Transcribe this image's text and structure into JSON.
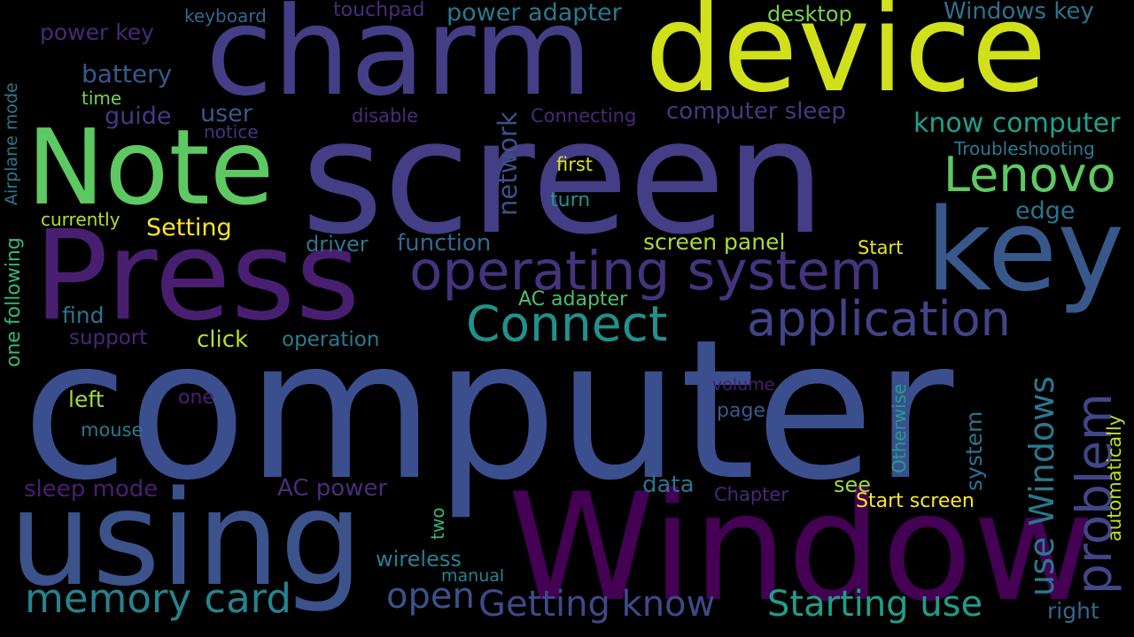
{
  "words": [
    {
      "text": "computer",
      "color": "#3b4f8e"
    },
    {
      "text": "screen",
      "color": "#433e85"
    },
    {
      "text": "Press",
      "color": "#481f70"
    },
    {
      "text": "charm",
      "color": "#433e85"
    },
    {
      "text": "device",
      "color": "#d0e11c"
    },
    {
      "text": "Note",
      "color": "#5ec962"
    },
    {
      "text": "key",
      "color": "#38588c"
    },
    {
      "text": "using",
      "color": "#3b528b"
    },
    {
      "text": "Window",
      "color": "#440154"
    },
    {
      "text": "operating system",
      "color": "#46337e"
    },
    {
      "text": "application",
      "color": "#414487"
    },
    {
      "text": "Connect",
      "color": "#21918c"
    },
    {
      "text": "problem",
      "color": "#404688"
    },
    {
      "text": "Lenovo",
      "color": "#5ec962"
    },
    {
      "text": "memory card",
      "color": "#25838e"
    },
    {
      "text": "Getting know",
      "color": "#3e4989"
    },
    {
      "text": "Starting use",
      "color": "#1f9e89"
    },
    {
      "text": "use Windows",
      "color": "#2a788e"
    },
    {
      "text": "open",
      "color": "#3b528b"
    },
    {
      "text": "know computer",
      "color": "#1fa088"
    },
    {
      "text": "network",
      "color": "#3b528b"
    },
    {
      "text": "keyboard",
      "color": "#31688e"
    },
    {
      "text": "touchpad",
      "color": "#472d7b"
    },
    {
      "text": "power adapter",
      "color": "#2a788e"
    },
    {
      "text": "desktop",
      "color": "#7ad151"
    },
    {
      "text": "Windows key",
      "color": "#2c728e"
    },
    {
      "text": "power key",
      "color": "#482878"
    },
    {
      "text": "battery",
      "color": "#38588c"
    },
    {
      "text": "time",
      "color": "#7ad151"
    },
    {
      "text": "guide",
      "color": "#453882"
    },
    {
      "text": "user",
      "color": "#38588c"
    },
    {
      "text": "notice",
      "color": "#46337e"
    },
    {
      "text": "disable",
      "color": "#472d7b"
    },
    {
      "text": "Connecting",
      "color": "#482878"
    },
    {
      "text": "computer sleep",
      "color": "#453882"
    },
    {
      "text": "Troubleshooting",
      "color": "#2a788e"
    },
    {
      "text": "first",
      "color": "#d8e219"
    },
    {
      "text": "turn",
      "color": "#21918c"
    },
    {
      "text": "edge",
      "color": "#2c728e"
    },
    {
      "text": "currently",
      "color": "#b5de2b"
    },
    {
      "text": "Setting",
      "color": "#fde725"
    },
    {
      "text": "driver",
      "color": "#2a788e"
    },
    {
      "text": "function",
      "color": "#31688e"
    },
    {
      "text": "screen panel",
      "color": "#aadc32"
    },
    {
      "text": "Start",
      "color": "#e5e419"
    },
    {
      "text": "AC adapter",
      "color": "#4ac16d"
    },
    {
      "text": "find",
      "color": "#2c728e"
    },
    {
      "text": "support",
      "color": "#482878"
    },
    {
      "text": "click",
      "color": "#b5de2b"
    },
    {
      "text": "operation",
      "color": "#287c8e"
    },
    {
      "text": "Airplane mode",
      "color": "#2a788e"
    },
    {
      "text": "one following",
      "color": "#35b779"
    },
    {
      "text": "left",
      "color": "#a0da39"
    },
    {
      "text": "one",
      "color": "#481f70"
    },
    {
      "text": "mouse",
      "color": "#2a788e"
    },
    {
      "text": "volume",
      "color": "#481f70"
    },
    {
      "text": "page",
      "color": "#38588c"
    },
    {
      "text": "Otherwise",
      "color": "#1fa088"
    },
    {
      "text": "system",
      "color": "#2c728e"
    },
    {
      "text": "automatically",
      "color": "#bddf26"
    },
    {
      "text": "sleep mode",
      "color": "#481f70"
    },
    {
      "text": "AC power",
      "color": "#472d7b"
    },
    {
      "text": "data",
      "color": "#2c728e"
    },
    {
      "text": "Chapter",
      "color": "#482878"
    },
    {
      "text": "see",
      "color": "#a0da39"
    },
    {
      "text": "Start screen",
      "color": "#fde725"
    },
    {
      "text": "two",
      "color": "#35b779"
    },
    {
      "text": "wireless",
      "color": "#277f8e"
    },
    {
      "text": "manual",
      "color": "#25838e"
    },
    {
      "text": "right",
      "color": "#31688e"
    }
  ]
}
